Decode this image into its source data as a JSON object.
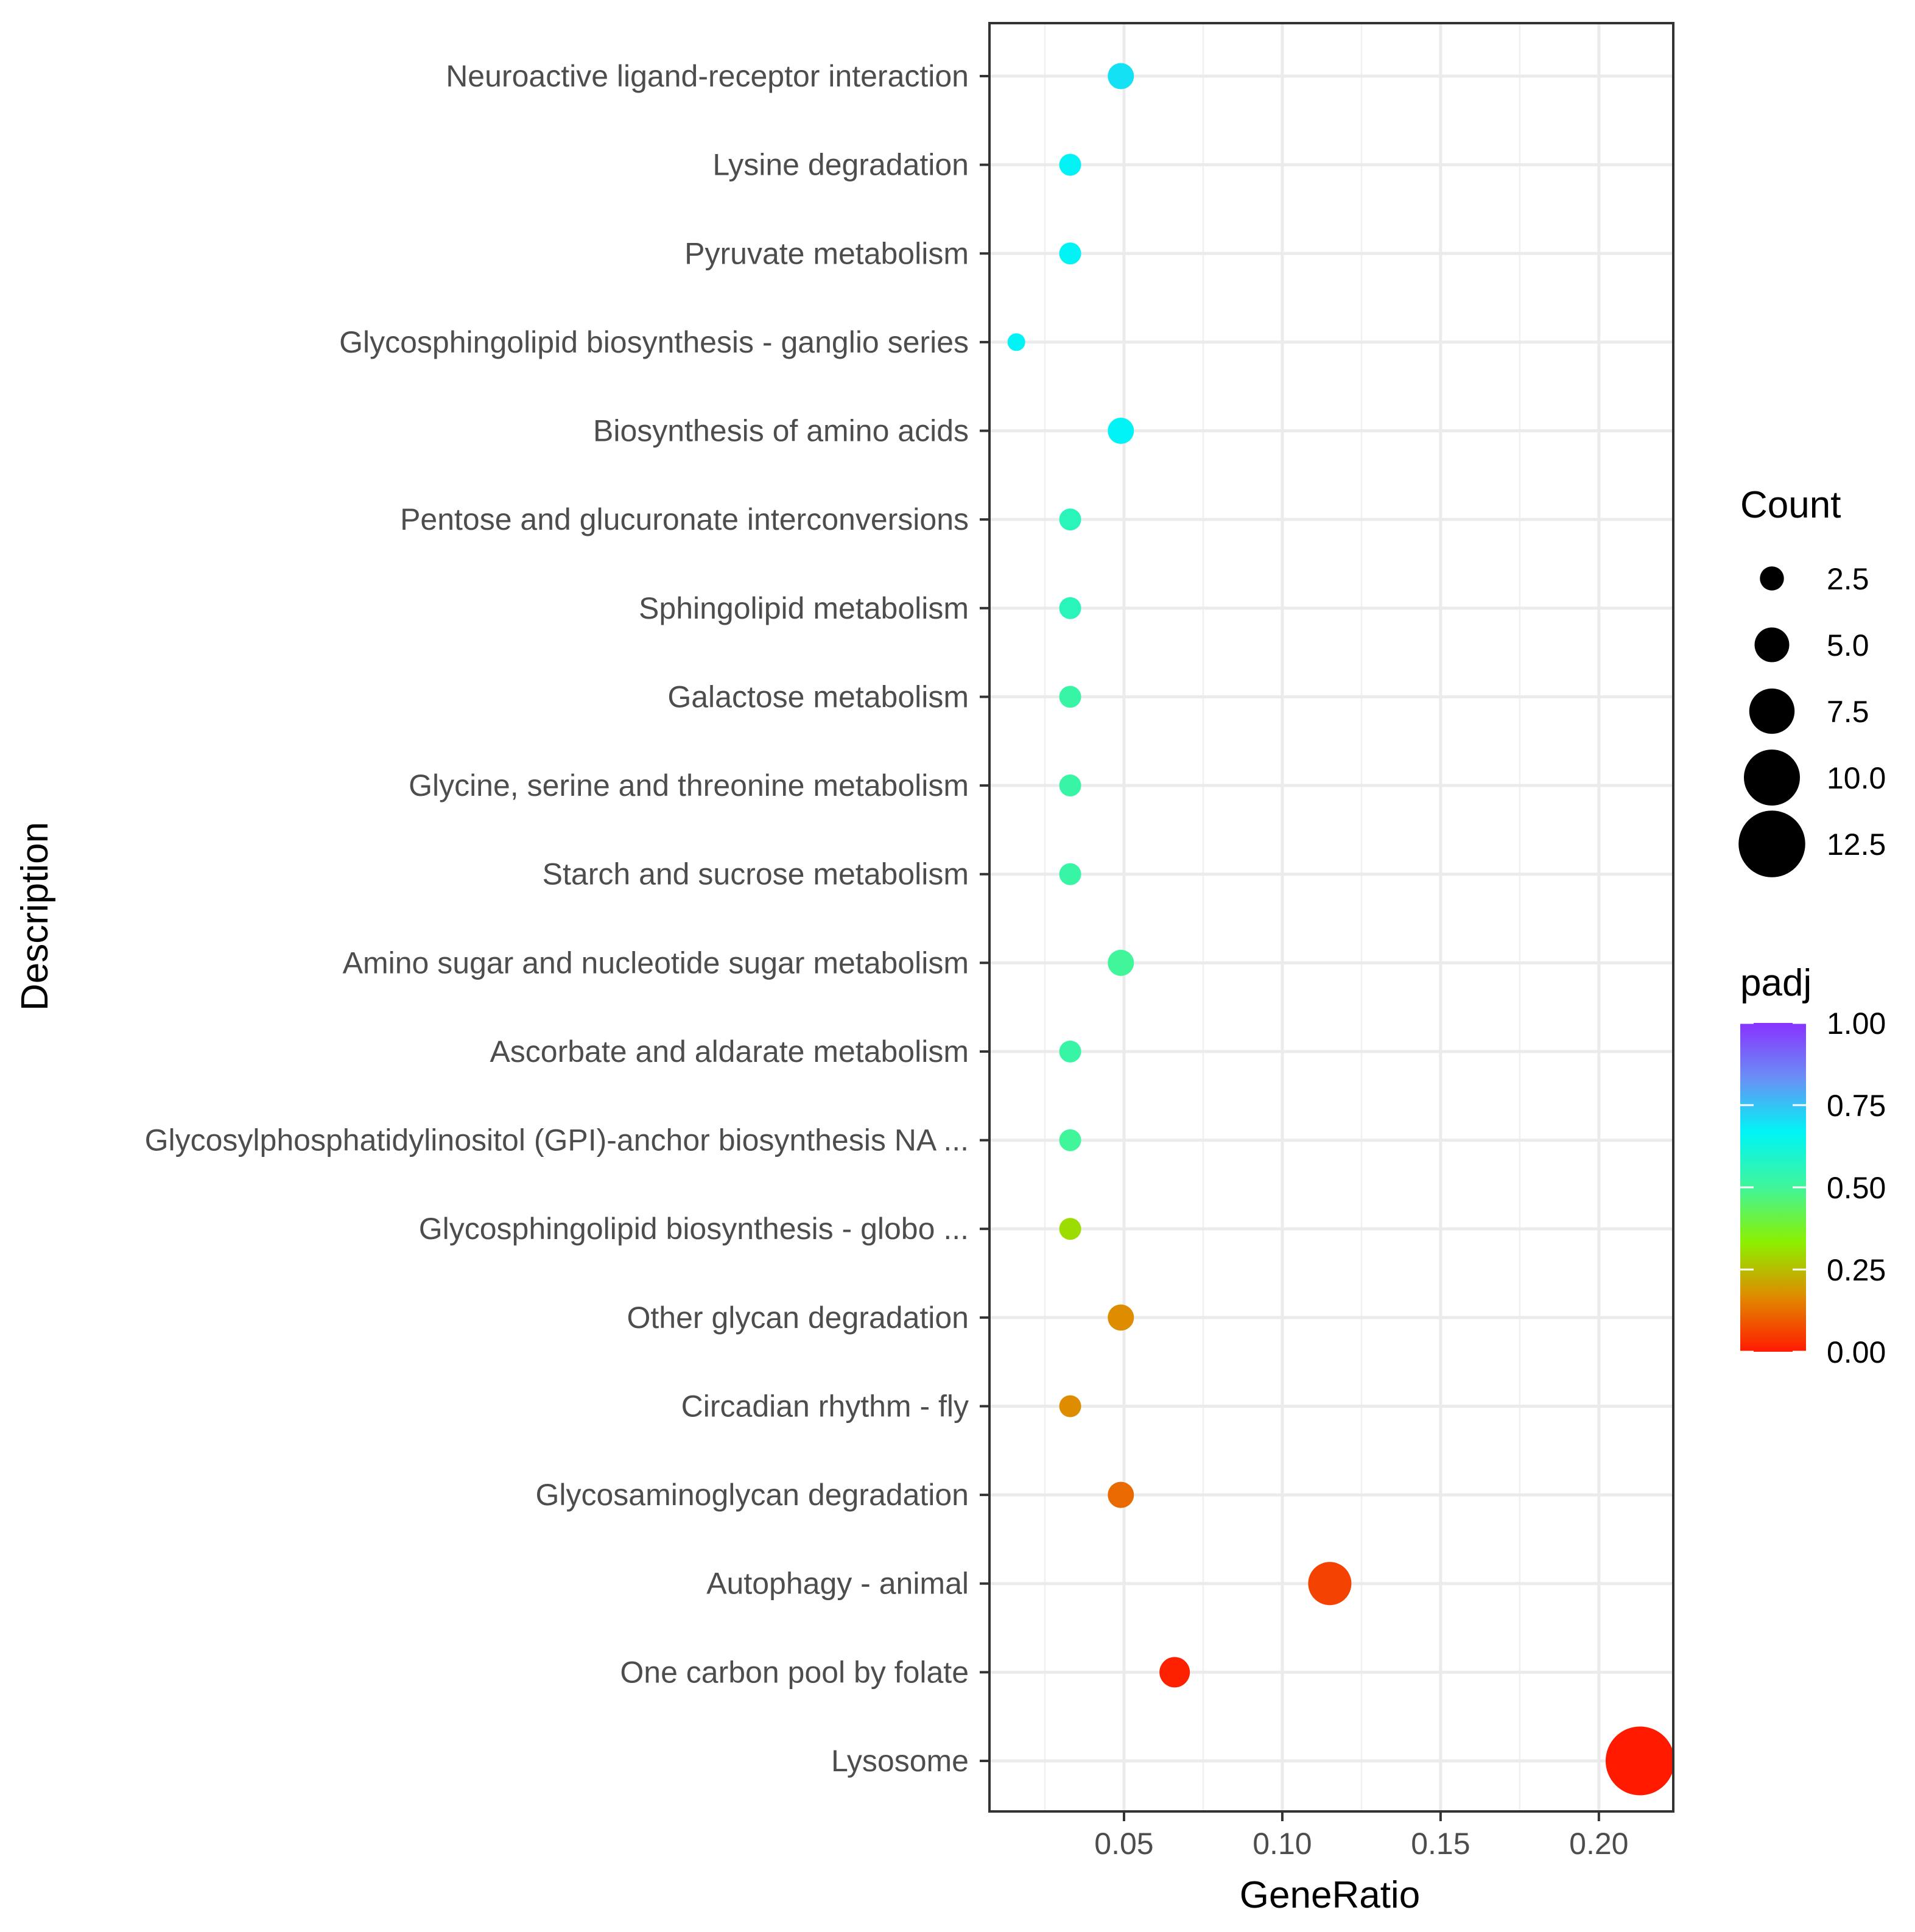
{
  "chart_data": {
    "type": "scatter",
    "xlabel": "GeneRatio",
    "ylabel": "Description",
    "xlim": [
      0.0075,
      0.2235
    ],
    "x_ticks": [
      {
        "value": 0.05,
        "label": "0.05"
      },
      {
        "value": 0.1,
        "label": "0.10"
      },
      {
        "value": 0.15,
        "label": "0.15"
      },
      {
        "value": 0.2,
        "label": "0.20"
      }
    ],
    "grid": true,
    "points": [
      {
        "description": "Neuroactive ligand-receptor interaction",
        "gene_ratio": 0.049,
        "count": 3,
        "padj": 0.7
      },
      {
        "description": "Lysine degradation",
        "gene_ratio": 0.033,
        "count": 2,
        "padj": 0.67
      },
      {
        "description": "Pyruvate metabolism",
        "gene_ratio": 0.033,
        "count": 2,
        "padj": 0.67
      },
      {
        "description": "Glycosphingolipid biosynthesis - ganglio series",
        "gene_ratio": 0.016,
        "count": 1,
        "padj": 0.67
      },
      {
        "description": "Biosynthesis of amino acids",
        "gene_ratio": 0.049,
        "count": 3,
        "padj": 0.67
      },
      {
        "description": "Pentose and glucuronate interconversions",
        "gene_ratio": 0.033,
        "count": 2,
        "padj": 0.56
      },
      {
        "description": "Sphingolipid metabolism",
        "gene_ratio": 0.033,
        "count": 2,
        "padj": 0.56
      },
      {
        "description": "Galactose metabolism",
        "gene_ratio": 0.033,
        "count": 2,
        "padj": 0.52
      },
      {
        "description": "Glycine, serine and threonine metabolism",
        "gene_ratio": 0.033,
        "count": 2,
        "padj": 0.52
      },
      {
        "description": "Starch and sucrose metabolism",
        "gene_ratio": 0.033,
        "count": 2,
        "padj": 0.52
      },
      {
        "description": "Amino sugar and nucleotide sugar metabolism",
        "gene_ratio": 0.049,
        "count": 3,
        "padj": 0.5
      },
      {
        "description": "Ascorbate and aldarate metabolism",
        "gene_ratio": 0.033,
        "count": 2,
        "padj": 0.52
      },
      {
        "description": "Glycosylphosphatidylinositol (GPI)-anchor biosynthesis NA ...",
        "gene_ratio": 0.033,
        "count": 2,
        "padj": 0.5
      },
      {
        "description": "Glycosphingolipid biosynthesis - globo ...",
        "gene_ratio": 0.033,
        "count": 2,
        "padj": 0.3
      },
      {
        "description": "Other glycan degradation",
        "gene_ratio": 0.049,
        "count": 3,
        "padj": 0.17
      },
      {
        "description": "Circadian rhythm - fly",
        "gene_ratio": 0.033,
        "count": 2,
        "padj": 0.17
      },
      {
        "description": "Glycosaminoglycan degradation",
        "gene_ratio": 0.049,
        "count": 3,
        "padj": 0.12
      },
      {
        "description": "Autophagy - animal",
        "gene_ratio": 0.115,
        "count": 7,
        "padj": 0.06
      },
      {
        "description": "One carbon pool by folate",
        "gene_ratio": 0.066,
        "count": 4,
        "padj": 0.01
      },
      {
        "description": "Lysosome",
        "gene_ratio": 0.213,
        "count": 13,
        "padj": 0.0
      }
    ],
    "legend": {
      "size": {
        "title": "Count",
        "entries": [
          {
            "value": 2.5,
            "label": "2.5"
          },
          {
            "value": 5.0,
            "label": "5.0"
          },
          {
            "value": 7.5,
            "label": "7.5"
          },
          {
            "value": 10.0,
            "label": "10.0"
          },
          {
            "value": 12.5,
            "label": "12.5"
          }
        ]
      },
      "color": {
        "title": "padj",
        "range": [
          0,
          1
        ],
        "ticks": [
          {
            "value": 1.0,
            "label": "1.00"
          },
          {
            "value": 0.75,
            "label": "0.75"
          },
          {
            "value": 0.5,
            "label": "0.50"
          },
          {
            "value": 0.25,
            "label": "0.25"
          },
          {
            "value": 0.0,
            "label": "0.00"
          }
        ],
        "colors": [
          "#ff0000",
          "#ff7f00",
          "#ffff00",
          "#00ff00",
          "#00ffff",
          "#0000ff",
          "#8b00ff"
        ]
      },
      "placement": "right"
    }
  }
}
